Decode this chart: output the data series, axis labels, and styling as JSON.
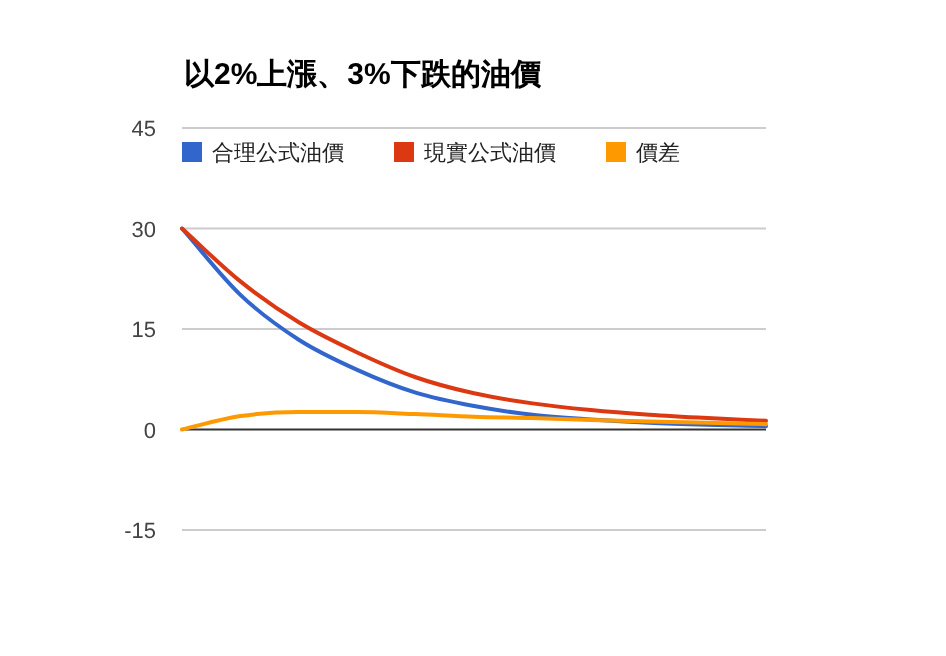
{
  "chart_data": {
    "type": "line",
    "title": "以2%上漲、3%下跌的油價",
    "categories": [
      null,
      null,
      null,
      null,
      null,
      null,
      null,
      null,
      null,
      null,
      null
    ],
    "series": [
      {
        "name": "合理公式油價",
        "color": "#3366cc",
        "values": [
          30,
          20.1,
          13.4,
          8.9,
          5.5,
          3.5,
          2.2,
          1.5,
          1.0,
          0.7,
          0.5
        ]
      },
      {
        "name": "現實公式油價",
        "color": "#dc3912",
        "values": [
          30,
          22.1,
          16.0,
          11.5,
          7.8,
          5.4,
          3.9,
          2.9,
          2.2,
          1.7,
          1.3
        ]
      },
      {
        "name": "價差",
        "color": "#ff9900",
        "values": [
          0,
          2.0,
          2.6,
          2.6,
          2.3,
          1.9,
          1.7,
          1.4,
          1.2,
          1.0,
          0.8
        ]
      }
    ],
    "ylim": [
      -15,
      45
    ],
    "yticks": [
      -15,
      0,
      15,
      30,
      45
    ],
    "grid": "y",
    "legend": "top",
    "marker": "none",
    "line_style": "solid"
  }
}
